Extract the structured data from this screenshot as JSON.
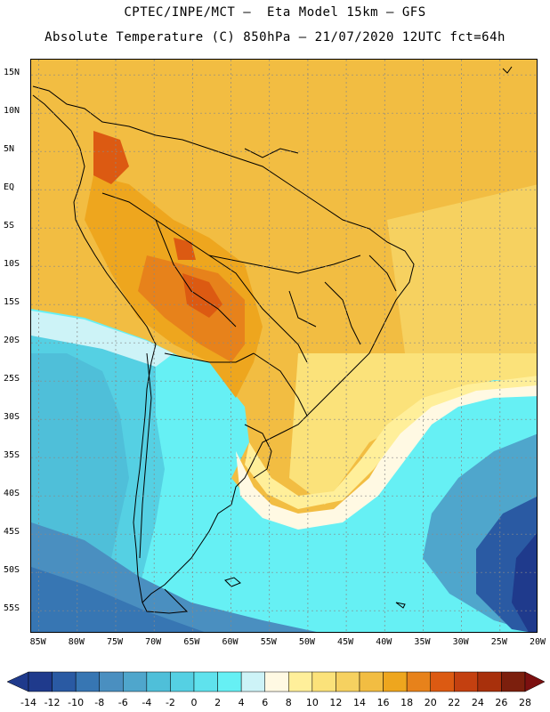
{
  "header": {
    "line1": "CPTEC/INPE/MCT –  Eta Model 15km – GFS",
    "line2": "Absolute Temperature (C) 850hPa – 21/07/2020 12UTC fct=64h"
  },
  "axes": {
    "lat_labels": [
      "15N",
      "10N",
      "5N",
      "EQ",
      "5S",
      "10S",
      "15S",
      "20S",
      "25S",
      "30S",
      "35S",
      "40S",
      "45S",
      "50S",
      "55S"
    ],
    "lat_values": [
      15,
      10,
      5,
      0,
      -5,
      -10,
      -15,
      -20,
      -25,
      -30,
      -35,
      -40,
      -45,
      -50,
      -55
    ],
    "lon_labels": [
      "85W",
      "80W",
      "75W",
      "70W",
      "65W",
      "60W",
      "55W",
      "50W",
      "45W",
      "40W",
      "35W",
      "30W",
      "25W",
      "20W"
    ],
    "lon_values": [
      -85,
      -80,
      -75,
      -70,
      -65,
      -60,
      -55,
      -50,
      -45,
      -40,
      -35,
      -30,
      -25,
      -20
    ],
    "lat_range": [
      -58,
      17
    ],
    "lon_range": [
      -86,
      -20
    ],
    "grid": true
  },
  "colorbar": {
    "labels": [
      "-14",
      "-12",
      "-10",
      "-8",
      "-6",
      "-4",
      "-2",
      "0",
      "2",
      "4",
      "6",
      "8",
      "10",
      "12",
      "14",
      "16",
      "18",
      "20",
      "22",
      "24",
      "26",
      "28"
    ],
    "colors": [
      "#1f3a8c",
      "#2a5aa3",
      "#3776b3",
      "#4a8fc0",
      "#4fa6cc",
      "#4fbfd9",
      "#55d0e3",
      "#5fe2ed",
      "#66f0f4",
      "#cdf3f7",
      "#fff9e3",
      "#ffef9a",
      "#fbe27a",
      "#f6d160",
      "#f2bd42",
      "#eea61e",
      "#e7821b",
      "#dc5a12",
      "#c44010",
      "#a8300c",
      "#7c1f0d"
    ],
    "under_color": "#1f3a8c",
    "over_color": "#7c1010"
  },
  "field": {
    "ocean_warm": "#f2bd42",
    "ocean_warm_mid": "#f6d160",
    "land_warm": "#eea61e",
    "land_hot": "#e7821b",
    "land_hotter": "#dc5a12",
    "cold_light": "#66f0f4",
    "cold_mid": "#55d0e3",
    "cold_deep": "#4fa6cc",
    "cold_deepest": "#2a5aa3",
    "front_pale": "#fff9e3",
    "front_yellow": "#ffef9a",
    "transition_pale": "#cdf3f7"
  }
}
